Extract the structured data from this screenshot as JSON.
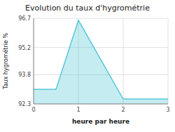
{
  "chart_data": {
    "type": "area",
    "title": "Evolution du taux d'hygrométrie",
    "xlabel": "heure par heure",
    "ylabel": "Taux hygrométrie %",
    "x": [
      0,
      0.5,
      1,
      2,
      2.05,
      3
    ],
    "values": [
      93.05,
      93.05,
      96.6,
      92.55,
      92.55,
      92.55
    ],
    "color": "#56c8d8",
    "xlim": [
      0,
      3
    ],
    "ylim": [
      92.3,
      96.7
    ],
    "xticks": [
      0,
      1,
      2,
      3
    ],
    "yticks": [
      92.3,
      93.8,
      95.2,
      96.7
    ],
    "grid": true
  }
}
